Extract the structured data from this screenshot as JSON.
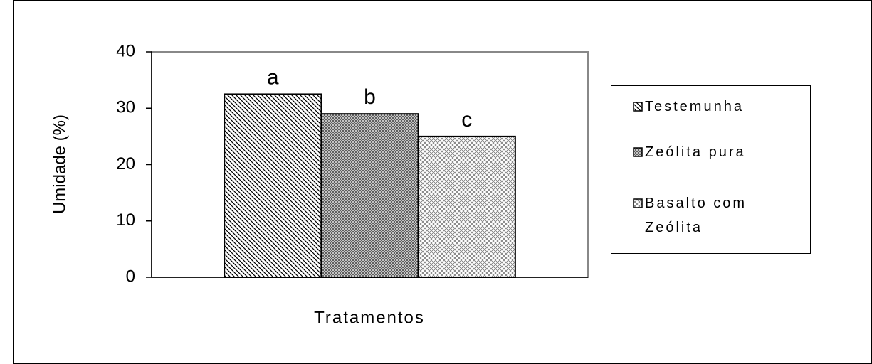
{
  "chart_data": {
    "type": "bar",
    "y_label": "Umidade (%)",
    "x_label": "Tratamentos",
    "categories": [
      null
    ],
    "series": [
      {
        "name": "Testemunha",
        "color": "#000000",
        "pattern": "diagonal",
        "values": [
          32.5
        ],
        "annotation": "a"
      },
      {
        "name": "Zeólita pura",
        "color": "#000000",
        "pattern": "crosshatch",
        "values": [
          29
        ],
        "annotation": "b"
      },
      {
        "name": "Basalto com Zeólita",
        "color": "#000000",
        "pattern": "dots",
        "values": [
          25
        ],
        "annotation": "c"
      }
    ],
    "ylim": [
      0,
      40
    ],
    "yticks": [
      0,
      10,
      20,
      30,
      40
    ],
    "grid": false,
    "legend": "right"
  }
}
